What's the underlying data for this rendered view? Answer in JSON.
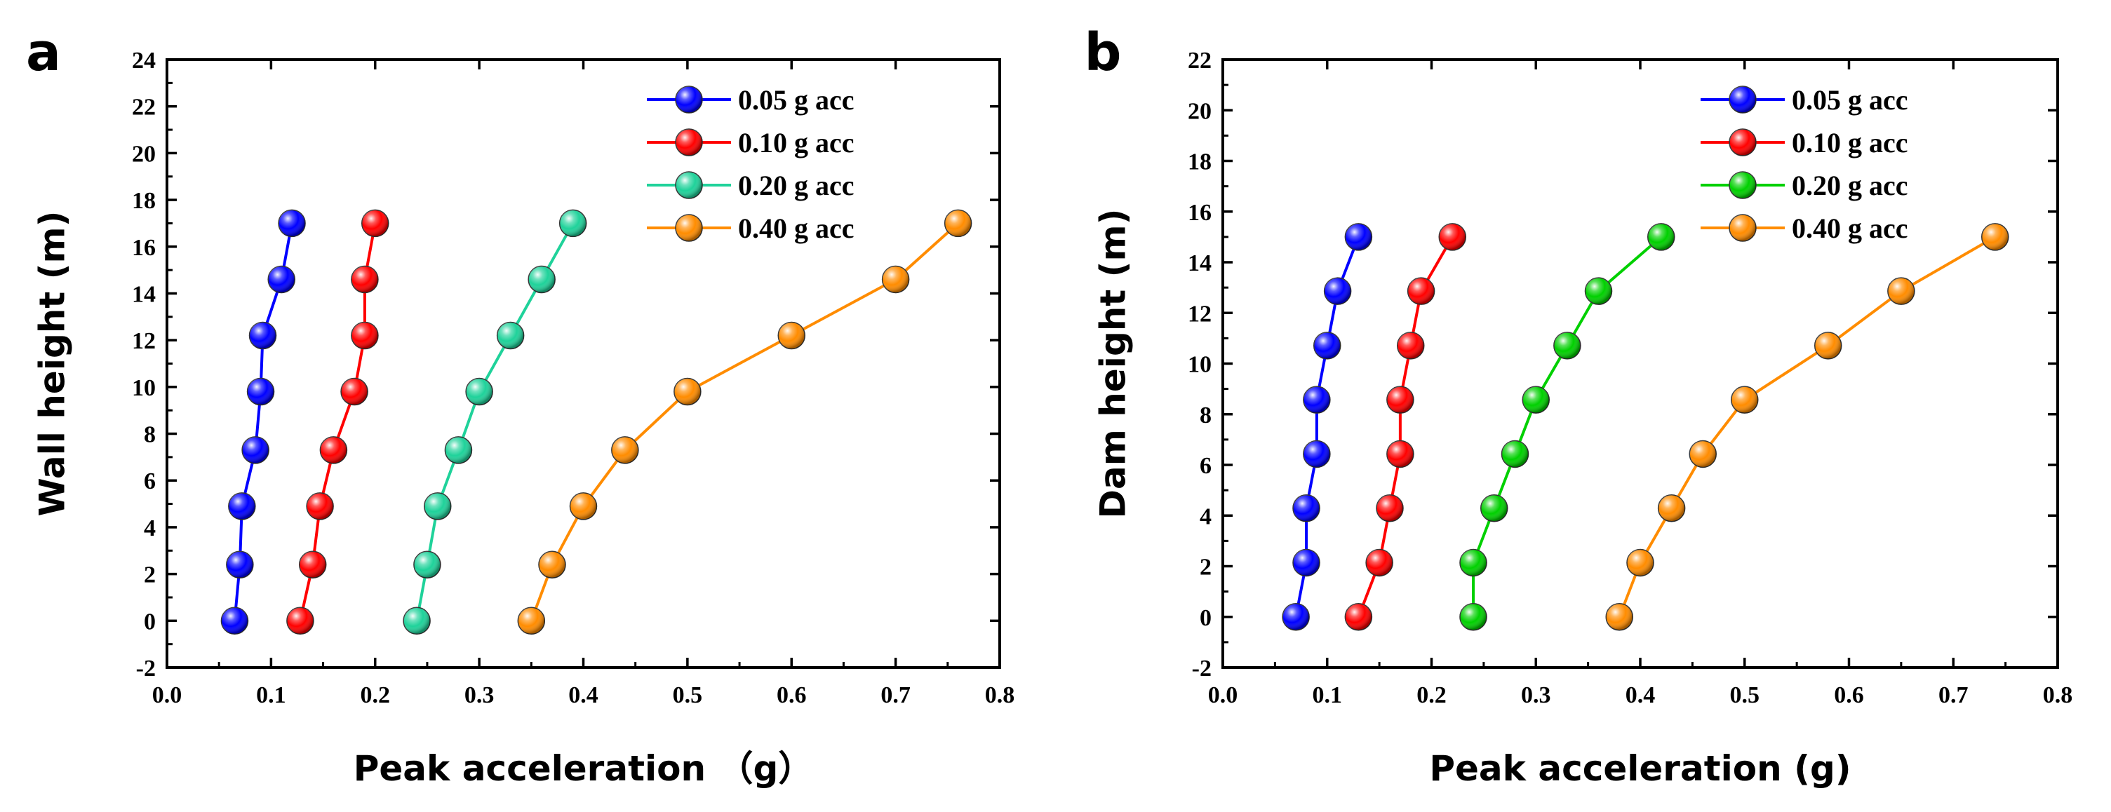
{
  "chart_data": [
    {
      "type": "line",
      "panel_label": "a",
      "xlabel": "Peak acceleration （g）",
      "ylabel": "Wall height (m)",
      "xlim": [
        0.0,
        0.8
      ],
      "ylim": [
        -2,
        24
      ],
      "xticks": [
        "0.0",
        "0.1",
        "0.2",
        "0.3",
        "0.4",
        "0.5",
        "0.6",
        "0.7",
        "0.8"
      ],
      "yticks": [
        "-2",
        "0",
        "2",
        "4",
        "6",
        "8",
        "10",
        "12",
        "14",
        "16",
        "18",
        "20",
        "22",
        "24"
      ],
      "grid": false,
      "legend_position": "top-right",
      "series": [
        {
          "name": "0.05 g acc",
          "color": "#0000ff",
          "x": [
            0.065,
            0.07,
            0.072,
            0.085,
            0.09,
            0.092,
            0.11,
            0.12
          ],
          "y": [
            0,
            2.4,
            4.9,
            7.3,
            9.8,
            12.2,
            14.6,
            17.0
          ]
        },
        {
          "name": "0.10 g acc",
          "color": "#ff0000",
          "x": [
            0.128,
            0.14,
            0.147,
            0.16,
            0.18,
            0.19,
            0.19,
            0.2
          ],
          "y": [
            0,
            2.4,
            4.9,
            7.3,
            9.8,
            12.2,
            14.6,
            17.0
          ]
        },
        {
          "name": "0.20 g acc",
          "color": "#1fd29a",
          "x": [
            0.24,
            0.25,
            0.26,
            0.28,
            0.3,
            0.33,
            0.36,
            0.39
          ],
          "y": [
            0,
            2.4,
            4.9,
            7.3,
            9.8,
            12.2,
            14.6,
            17.0
          ]
        },
        {
          "name": "0.40 g acc",
          "color": "#ff8c00",
          "x": [
            0.35,
            0.37,
            0.4,
            0.44,
            0.5,
            0.6,
            0.7,
            0.76
          ],
          "y": [
            0,
            2.4,
            4.9,
            7.3,
            9.8,
            12.2,
            14.6,
            17.0
          ]
        }
      ]
    },
    {
      "type": "line",
      "panel_label": "b",
      "xlabel": "Peak acceleration (g)",
      "ylabel": "Dam height (m)",
      "xlim": [
        0.0,
        0.8
      ],
      "ylim": [
        -2,
        22
      ],
      "xticks": [
        "0.0",
        "0.1",
        "0.2",
        "0.3",
        "0.4",
        "0.5",
        "0.6",
        "0.7",
        "0.8"
      ],
      "yticks": [
        "-2",
        "0",
        "2",
        "4",
        "6",
        "8",
        "10",
        "12",
        "14",
        "16",
        "18",
        "20",
        "22"
      ],
      "grid": false,
      "legend_position": "top-right",
      "series": [
        {
          "name": "0.05 g acc",
          "color": "#0000ff",
          "x": [
            0.07,
            0.08,
            0.08,
            0.09,
            0.09,
            0.1,
            0.11,
            0.13
          ],
          "y": [
            0,
            2.14,
            4.29,
            6.43,
            8.57,
            10.71,
            12.86,
            15.0
          ]
        },
        {
          "name": "0.10 g acc",
          "color": "#ff0000",
          "x": [
            0.13,
            0.15,
            0.16,
            0.17,
            0.17,
            0.18,
            0.19,
            0.22
          ],
          "y": [
            0,
            2.14,
            4.29,
            6.43,
            8.57,
            10.71,
            12.86,
            15.0
          ]
        },
        {
          "name": "0.20 g acc",
          "color": "#00d000",
          "x": [
            0.24,
            0.24,
            0.26,
            0.28,
            0.3,
            0.33,
            0.36,
            0.42
          ],
          "y": [
            0,
            2.14,
            4.29,
            6.43,
            8.57,
            10.71,
            12.86,
            15.0
          ]
        },
        {
          "name": "0.40 g acc",
          "color": "#ff8c00",
          "x": [
            0.38,
            0.4,
            0.43,
            0.46,
            0.5,
            0.58,
            0.65,
            0.74
          ],
          "y": [
            0,
            2.14,
            4.29,
            6.43,
            8.57,
            10.71,
            12.86,
            15.0
          ]
        }
      ]
    }
  ]
}
